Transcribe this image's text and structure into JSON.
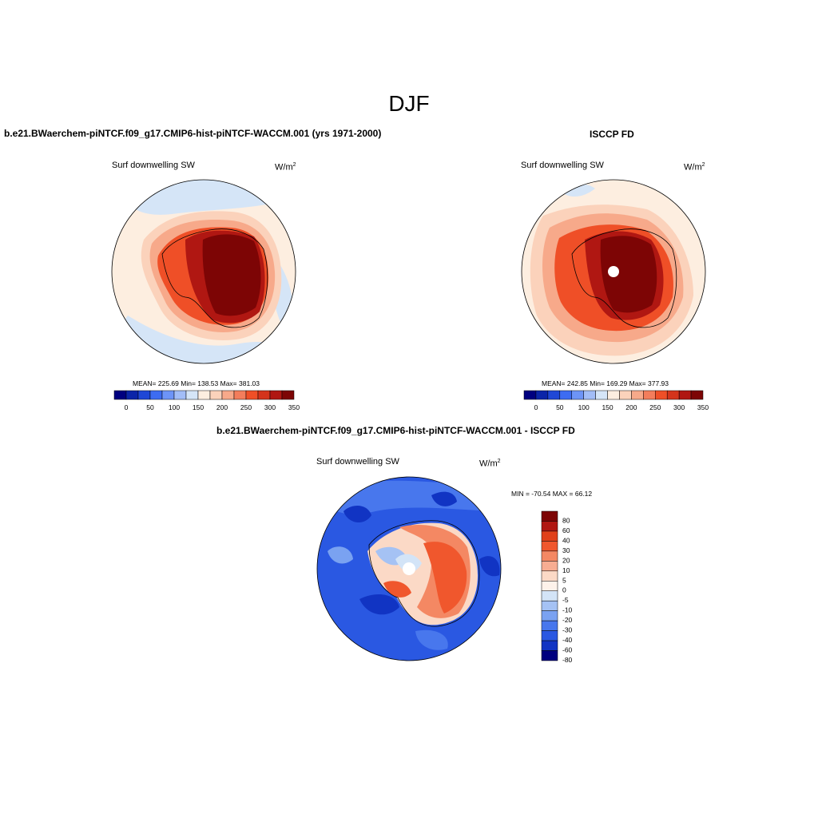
{
  "figure_title": "DJF",
  "colors": {
    "model_scale": [
      "#00007f",
      "#0b25a8",
      "#1f47d6",
      "#3d6cf2",
      "#6d94f7",
      "#a2bdf7",
      "#d5e5f7",
      "#fdeee0",
      "#fbd2bb",
      "#f7a98a",
      "#f37d5c",
      "#ef4f27",
      "#d4341c",
      "#b01712",
      "#7d0505"
    ],
    "diff_scale": [
      "#7d0505",
      "#b01712",
      "#e0401a",
      "#f0572d",
      "#f48863",
      "#f7ad92",
      "#fbd9c6",
      "#fdf2ea",
      "#d3e4f7",
      "#a5c2f4",
      "#7aa2f1",
      "#4877ed",
      "#2a58e2",
      "#1134c3",
      "#00007f"
    ]
  },
  "panels": {
    "model": {
      "header": "b.e21.BWaerchem-piNTCF.f09_g17.CMIP6-hist-piNTCF-WACCM.001 (yrs 1971-2000)",
      "variable": "Surf downwelling SW",
      "units": "W/m",
      "units_exp": "2",
      "stats": "MEAN= 225.69  Min= 138.53  Max= 381.03",
      "colorbar_ticks": [
        "0",
        "50",
        "100",
        "150",
        "200",
        "250",
        "300",
        "350"
      ]
    },
    "obs": {
      "header": "ISCCP FD",
      "variable": "Surf downwelling SW",
      "units": "W/m",
      "units_exp": "2",
      "stats": "MEAN= 242.85  Min= 169.29  Max= 377.93",
      "colorbar_ticks": [
        "0",
        "50",
        "100",
        "150",
        "200",
        "250",
        "300",
        "350"
      ]
    },
    "diff": {
      "header": "b.e21.BWaerchem-piNTCF.f09_g17.CMIP6-hist-piNTCF-WACCM.001 - ISCCP FD",
      "variable": "Surf downwelling SW",
      "units": "W/m",
      "units_exp": "2",
      "stats": "MIN = -70.54 MAX =  66.12",
      "colorbar_ticks": [
        "80",
        "60",
        "40",
        "30",
        "20",
        "10",
        "5",
        "0",
        "-5",
        "-10",
        "-20",
        "-30",
        "-40",
        "-60",
        "-80"
      ]
    }
  }
}
